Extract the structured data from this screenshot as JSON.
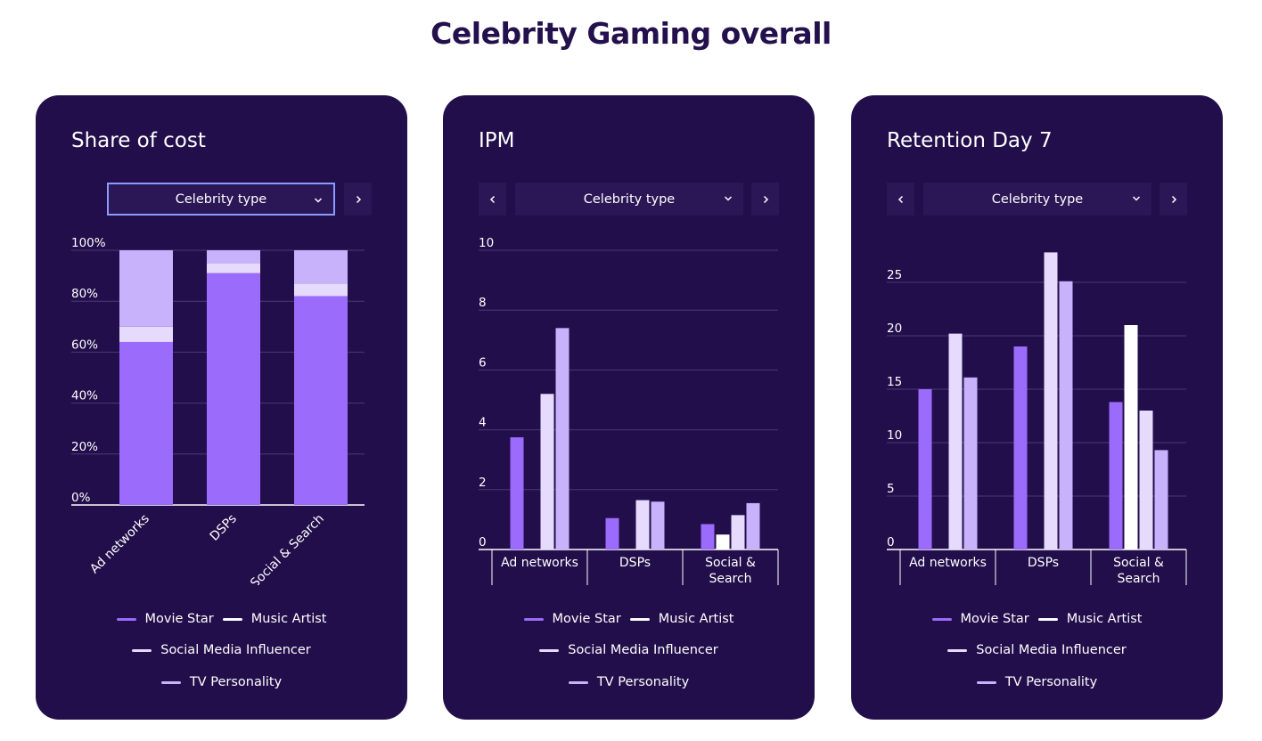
{
  "page": {
    "title": "Celebrity Gaming overall"
  },
  "colors": {
    "movie_star": "#9b6bfb",
    "music_artist": "#ffffff",
    "social_media_influencer": "#e6dafd",
    "tv_personality": "#c8b2fb",
    "card_bg": "#220e4b",
    "grid": "#4a3a78"
  },
  "series_names": [
    "Movie Star",
    "Music Artist",
    "Social Media Influencer",
    "TV Personality"
  ],
  "cards": [
    {
      "title": "Share of cost",
      "select_label": "Celebrity type",
      "focused": true
    },
    {
      "title": "IPM",
      "select_label": "Celebrity type",
      "focused": false
    },
    {
      "title": "Retention Day 7",
      "select_label": "Celebrity type",
      "focused": false
    }
  ],
  "chart_data": [
    {
      "type": "bar",
      "stacked": true,
      "title": "Share of cost",
      "categories": [
        "Ad networks",
        "DSPs",
        "Social & Search"
      ],
      "ylim": [
        0,
        100
      ],
      "yticks": [
        "0%",
        "20%",
        "40%",
        "60%",
        "80%",
        "100%"
      ],
      "series": [
        {
          "name": "Movie Star",
          "values": [
            64,
            91,
            82
          ]
        },
        {
          "name": "Music Artist",
          "values": [
            0,
            0,
            0
          ]
        },
        {
          "name": "Social Media Influencer",
          "values": [
            6,
            4,
            5
          ]
        },
        {
          "name": "TV Personality",
          "values": [
            30,
            5,
            13
          ]
        }
      ]
    },
    {
      "type": "bar",
      "stacked": false,
      "title": "IPM",
      "categories": [
        "Ad networks",
        "DSPs",
        "Social & Search"
      ],
      "ylim": [
        0,
        10
      ],
      "yticks": [
        "0",
        "2",
        "4",
        "6",
        "8",
        "10"
      ],
      "series": [
        {
          "name": "Movie Star",
          "values": [
            3.75,
            1.05,
            0.85
          ]
        },
        {
          "name": "Music Artist",
          "values": [
            0,
            0,
            0.5
          ]
        },
        {
          "name": "Social Media Influencer",
          "values": [
            5.2,
            1.65,
            1.15
          ]
        },
        {
          "name": "TV Personality",
          "values": [
            7.4,
            1.6,
            1.55
          ]
        }
      ]
    },
    {
      "type": "bar",
      "stacked": false,
      "title": "Retention Day 7",
      "categories": [
        "Ad networks",
        "DSPs",
        "Social & Search"
      ],
      "ylim": [
        0,
        28
      ],
      "yticks": [
        "0",
        "5",
        "10",
        "15",
        "20",
        "25"
      ],
      "series": [
        {
          "name": "Movie Star",
          "values": [
            15,
            19,
            13.8
          ]
        },
        {
          "name": "Music Artist",
          "values": [
            0,
            0,
            21
          ]
        },
        {
          "name": "Social Media Influencer",
          "values": [
            20.2,
            27.8,
            13
          ]
        },
        {
          "name": "TV Personality",
          "values": [
            16.1,
            25.1,
            9.3
          ]
        }
      ]
    }
  ]
}
